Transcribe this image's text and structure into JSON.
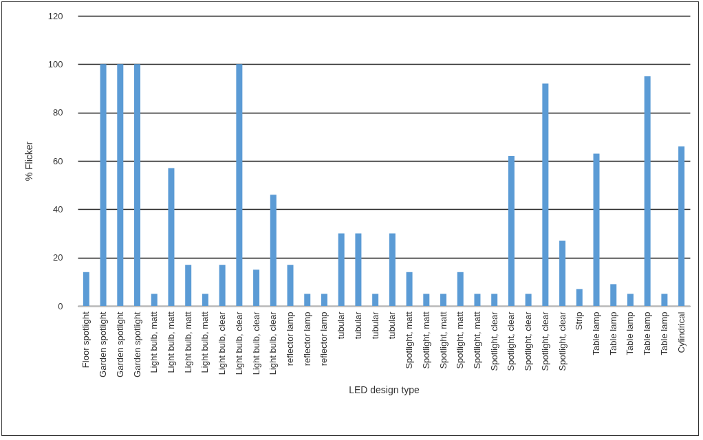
{
  "chart_data": {
    "type": "bar",
    "xlabel": "LED design type",
    "ylabel": "% Flicker",
    "categories": [
      "Floor spotlight",
      "Garden spotlight",
      "Garden spotlight",
      "Garden spotlight",
      "Light bulb, matt",
      "Light bulb, matt",
      "Light bulb, matt",
      "Light bulb, matt",
      "Light bulb, clear",
      "Light bulb, clear",
      "Light bulb, clear",
      "Light bulb, clear",
      "reflector lamp",
      "reflector lamp",
      "reflector lamp",
      "tubular",
      "tubular",
      "tubular",
      "tubular",
      "Spotlight, matt",
      "Spotlight, matt",
      "Spotlight, matt",
      "Spotlight, matt",
      "Spotlight, matt",
      "Spotlight, clear",
      "Spotlight, clear",
      "Spotlight, clear",
      "Spotlight, clear",
      "Spotlight, clear",
      "Strip",
      "Table lamp",
      "Table lamp",
      "Table lamp",
      "Table lamp",
      "Table lamp",
      "Cylindrical"
    ],
    "values": [
      14,
      100,
      100,
      100,
      5,
      57,
      17,
      5,
      17,
      100,
      15,
      46,
      17,
      5,
      5,
      30,
      30,
      5,
      30,
      14,
      5,
      5,
      14,
      5,
      5,
      62,
      5,
      92,
      27,
      7,
      63,
      9,
      5,
      95,
      5,
      66
    ],
    "color": "#5b9bd5",
    "ylim": [
      0,
      120
    ],
    "yticks": [
      0,
      20,
      40,
      60,
      80,
      100,
      120
    ],
    "grid": "y"
  }
}
